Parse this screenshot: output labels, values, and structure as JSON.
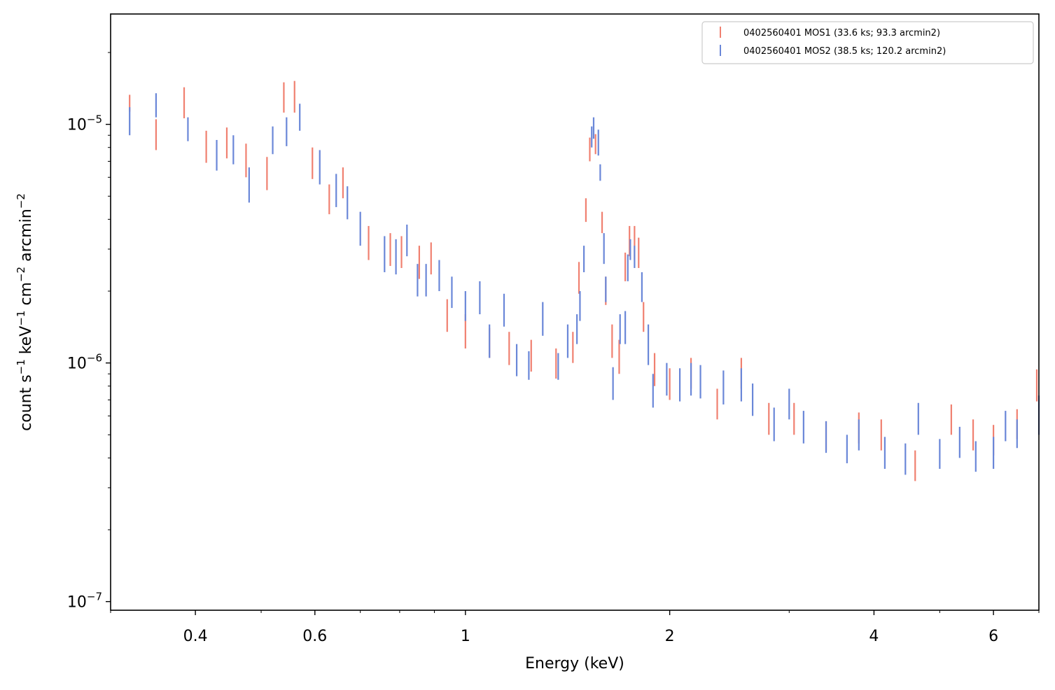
{
  "chart_data": {
    "type": "scatter",
    "xlabel": "Energy (keV)",
    "ylabel_parts": [
      "count s",
      "−1",
      " keV",
      "−1",
      " cm",
      "−2",
      " arcmin",
      "−2"
    ],
    "x_scale": "log",
    "y_scale": "log",
    "xlim": [
      0.3,
      7.0
    ],
    "ylim": [
      9.2e-08,
      2.9e-05
    ],
    "x_ticks": [
      {
        "value": 0.4,
        "label": "0.4"
      },
      {
        "value": 0.6,
        "label": "0.6"
      },
      {
        "value": 1,
        "label": "1"
      },
      {
        "value": 2,
        "label": "2"
      },
      {
        "value": 4,
        "label": "4"
      },
      {
        "value": 6,
        "label": "6"
      }
    ],
    "y_ticks": [
      {
        "value": 1e-07,
        "base": "10",
        "exp": "−7"
      },
      {
        "value": 1e-06,
        "base": "10",
        "exp": "−6"
      },
      {
        "value": 1e-05,
        "base": "10",
        "exp": "−5"
      }
    ],
    "grid": false,
    "legend_position": "top-right",
    "series": [
      {
        "name": "0402560401 MOS1 (33.6 ks; 93.3 arcmin2)",
        "color": "#f08070",
        "points": [
          [
            0.32,
            1.33e-05,
            1.13e-05
          ],
          [
            0.35,
            1.05e-05,
            7.8e-06
          ],
          [
            0.385,
            1.43e-05,
            1.06e-05
          ],
          [
            0.415,
            9.4e-06,
            6.9e-06
          ],
          [
            0.445,
            9.7e-06,
            7.2e-06
          ],
          [
            0.475,
            8.3e-06,
            6e-06
          ],
          [
            0.51,
            7.3e-06,
            5.3e-06
          ],
          [
            0.54,
            1.5e-05,
            1.12e-05
          ],
          [
            0.56,
            1.52e-05,
            1.12e-05
          ],
          [
            0.595,
            8e-06,
            5.9e-06
          ],
          [
            0.63,
            5.6e-06,
            4.2e-06
          ],
          [
            0.66,
            6.6e-06,
            4.9e-06
          ],
          [
            0.72,
            3.75e-06,
            2.7e-06
          ],
          [
            0.775,
            3.5e-06,
            2.55e-06
          ],
          [
            0.805,
            3.4e-06,
            2.5e-06
          ],
          [
            0.855,
            3.1e-06,
            2.25e-06
          ],
          [
            0.89,
            3.2e-06,
            2.35e-06
          ],
          [
            0.94,
            1.85e-06,
            1.35e-06
          ],
          [
            1.0,
            1.6e-06,
            1.15e-06
          ],
          [
            1.085,
            1.4e-06,
            1.05e-06
          ],
          [
            1.16,
            1.35e-06,
            9.8e-07
          ],
          [
            1.25,
            1.25e-06,
            9.2e-07
          ],
          [
            1.36,
            1.15e-06,
            8.6e-07
          ],
          [
            1.44,
            1.35e-06,
            1e-06
          ],
          [
            1.47,
            2.65e-06,
            1.95e-06
          ],
          [
            1.505,
            4.9e-06,
            3.9e-06
          ],
          [
            1.525,
            8.8e-06,
            7e-06
          ],
          [
            1.555,
            9.1e-06,
            7.5e-06
          ],
          [
            1.59,
            4.3e-06,
            3.5e-06
          ],
          [
            1.61,
            2.3e-06,
            1.75e-06
          ],
          [
            1.645,
            1.45e-06,
            1.05e-06
          ],
          [
            1.685,
            1.25e-06,
            9e-07
          ],
          [
            1.72,
            2.9e-06,
            2.2e-06
          ],
          [
            1.745,
            3.75e-06,
            2.8e-06
          ],
          [
            1.775,
            3.75e-06,
            2.7e-06
          ],
          [
            1.8,
            3.35e-06,
            2.5e-06
          ],
          [
            1.83,
            1.8e-06,
            1.35e-06
          ],
          [
            1.9,
            1.1e-06,
            8e-07
          ],
          [
            2.0,
            9.5e-07,
            7e-07
          ],
          [
            2.15,
            1.05e-06,
            7.8e-07
          ],
          [
            2.35,
            7.8e-07,
            5.8e-07
          ],
          [
            2.55,
            1.05e-06,
            7.8e-07
          ],
          [
            2.8,
            6.8e-07,
            5e-07
          ],
          [
            3.05,
            6.8e-07,
            5e-07
          ],
          [
            3.4,
            5.7e-07,
            4.3e-07
          ],
          [
            3.8,
            6.2e-07,
            4.6e-07
          ],
          [
            4.1,
            5.8e-07,
            4.3e-07
          ],
          [
            4.6,
            4.3e-07,
            3.2e-07
          ],
          [
            5.2,
            6.7e-07,
            5e-07
          ],
          [
            5.6,
            5.8e-07,
            4.3e-07
          ],
          [
            6.0,
            5.5e-07,
            4.1e-07
          ],
          [
            6.5,
            6.4e-07,
            4.8e-07
          ],
          [
            6.95,
            9.4e-07,
            6.9e-07
          ]
        ]
      },
      {
        "name": "0402560401 MOS2 (38.5 ks; 120.2 arcmin2)",
        "color": "#6a87d8",
        "points": [
          [
            0.32,
            1.18e-05,
            9e-06
          ],
          [
            0.35,
            1.35e-05,
            1.07e-05
          ],
          [
            0.39,
            1.07e-05,
            8.5e-06
          ],
          [
            0.43,
            8.6e-06,
            6.4e-06
          ],
          [
            0.455,
            9e-06,
            6.8e-06
          ],
          [
            0.48,
            6.6e-06,
            4.7e-06
          ],
          [
            0.52,
            9.8e-06,
            7.5e-06
          ],
          [
            0.545,
            1.07e-05,
            8.1e-06
          ],
          [
            0.57,
            1.22e-05,
            9.4e-06
          ],
          [
            0.61,
            7.8e-06,
            5.6e-06
          ],
          [
            0.645,
            6.2e-06,
            4.5e-06
          ],
          [
            0.67,
            5.5e-06,
            4e-06
          ],
          [
            0.7,
            4.3e-06,
            3.1e-06
          ],
          [
            0.76,
            3.4e-06,
            2.4e-06
          ],
          [
            0.79,
            3.3e-06,
            2.35e-06
          ],
          [
            0.82,
            3.8e-06,
            2.8e-06
          ],
          [
            0.85,
            2.6e-06,
            1.9e-06
          ],
          [
            0.875,
            2.6e-06,
            1.9e-06
          ],
          [
            0.915,
            2.7e-06,
            2e-06
          ],
          [
            0.955,
            2.3e-06,
            1.7e-06
          ],
          [
            1.0,
            2e-06,
            1.5e-06
          ],
          [
            1.05,
            2.2e-06,
            1.6e-06
          ],
          [
            1.085,
            1.45e-06,
            1.05e-06
          ],
          [
            1.14,
            1.95e-06,
            1.42e-06
          ],
          [
            1.19,
            1.2e-06,
            8.8e-07
          ],
          [
            1.24,
            1.12e-06,
            8.5e-07
          ],
          [
            1.3,
            1.8e-06,
            1.3e-06
          ],
          [
            1.37,
            1.1e-06,
            8.5e-07
          ],
          [
            1.415,
            1.45e-06,
            1.05e-06
          ],
          [
            1.46,
            1.6e-06,
            1.2e-06
          ],
          [
            1.475,
            2e-06,
            1.5e-06
          ],
          [
            1.495,
            3.1e-06,
            2.4e-06
          ],
          [
            1.535,
            9.8e-06,
            8e-06
          ],
          [
            1.545,
            1.07e-05,
            8.7e-06
          ],
          [
            1.57,
            9.5e-06,
            7.4e-06
          ],
          [
            1.58,
            6.8e-06,
            5.8e-06
          ],
          [
            1.6,
            3.5e-06,
            2.6e-06
          ],
          [
            1.61,
            2.3e-06,
            1.8e-06
          ],
          [
            1.65,
            9.6e-07,
            7e-07
          ],
          [
            1.69,
            1.6e-06,
            1.2e-06
          ],
          [
            1.72,
            1.65e-06,
            1.2e-06
          ],
          [
            1.735,
            2.85e-06,
            2.2e-06
          ],
          [
            1.75,
            3.3e-06,
            2.7e-06
          ],
          [
            1.775,
            3.1e-06,
            2.5e-06
          ],
          [
            1.82,
            2.4e-06,
            1.8e-06
          ],
          [
            1.86,
            1.45e-06,
            9.8e-07
          ],
          [
            1.89,
            9e-07,
            6.5e-07
          ],
          [
            1.98,
            1e-06,
            7.3e-07
          ],
          [
            2.07,
            9.5e-07,
            6.9e-07
          ],
          [
            2.15,
            1e-06,
            7.3e-07
          ],
          [
            2.22,
            9.8e-07,
            7.1e-07
          ],
          [
            2.4,
            9.3e-07,
            6.7e-07
          ],
          [
            2.55,
            9.5e-07,
            6.9e-07
          ],
          [
            2.65,
            8.2e-07,
            6e-07
          ],
          [
            2.85,
            6.5e-07,
            4.7e-07
          ],
          [
            3.0,
            7.8e-07,
            5.8e-07
          ],
          [
            3.15,
            6.3e-07,
            4.6e-07
          ],
          [
            3.4,
            5.7e-07,
            4.2e-07
          ],
          [
            3.65,
            5e-07,
            3.8e-07
          ],
          [
            3.8,
            5.8e-07,
            4.3e-07
          ],
          [
            4.15,
            4.9e-07,
            3.6e-07
          ],
          [
            4.45,
            4.6e-07,
            3.4e-07
          ],
          [
            4.65,
            6.8e-07,
            5e-07
          ],
          [
            5.0,
            4.8e-07,
            3.6e-07
          ],
          [
            5.35,
            5.4e-07,
            4e-07
          ],
          [
            5.65,
            4.7e-07,
            3.5e-07
          ],
          [
            6.0,
            4.9e-07,
            3.6e-07
          ],
          [
            6.25,
            6.3e-07,
            4.7e-07
          ],
          [
            6.5,
            5.8e-07,
            4.4e-07
          ],
          [
            7.0,
            7.3e-07,
            5e-07
          ]
        ]
      }
    ]
  }
}
